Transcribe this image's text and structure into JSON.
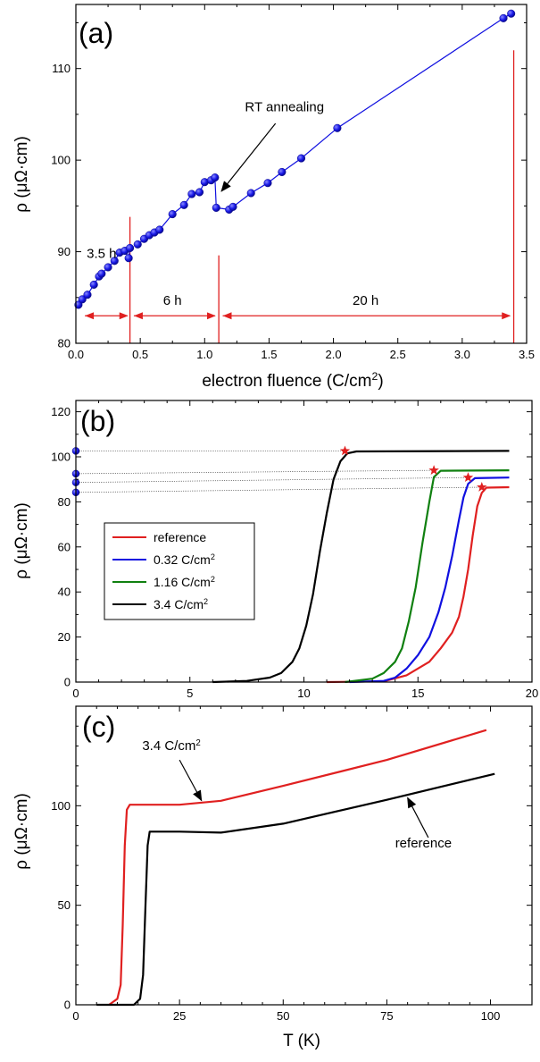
{
  "chart_data": [
    {
      "panel": "(a)",
      "type": "scatter",
      "xlabel": "electron fluence (C/cm²)",
      "ylabel": "ρ (μΩ·cm)",
      "xlim": [
        0.0,
        3.5
      ],
      "ylim": [
        80,
        117
      ],
      "xticks": [
        0.0,
        0.5,
        1.0,
        1.5,
        2.0,
        2.5,
        3.0,
        3.5
      ],
      "xtick_labels": [
        "0.0",
        "0.5",
        "1.0",
        "1.5",
        "2.0",
        "2.5",
        "3.0",
        "3.5"
      ],
      "yticks": [
        80,
        90,
        100,
        110
      ],
      "ytick_labels": [
        "80",
        "90",
        "100",
        "110"
      ],
      "grid": false,
      "color": "#1010e0",
      "annotation_color": "#e02020",
      "segments": [
        {
          "x": [
            0.02,
            0.05,
            0.09,
            0.14,
            0.18,
            0.2,
            0.25,
            0.3,
            0.34,
            0.38,
            0.41,
            0.42
          ],
          "y": [
            84.2,
            84.8,
            85.3,
            86.4,
            87.3,
            87.6,
            88.3,
            89.0,
            89.9,
            90.1,
            89.3,
            90.4
          ]
        },
        {
          "x": [
            0.48,
            0.53,
            0.57,
            0.61,
            0.65,
            0.75,
            0.84,
            0.9,
            0.96,
            1.0,
            1.05,
            1.08
          ],
          "y": [
            90.8,
            91.4,
            91.8,
            92.1,
            92.4,
            94.1,
            95.1,
            96.3,
            96.5,
            97.6,
            97.8,
            98.1
          ]
        },
        {
          "x": [
            1.08,
            1.09
          ],
          "y": [
            98.1,
            94.8
          ]
        },
        {
          "x": [
            1.09,
            1.19,
            1.22,
            1.36,
            1.49,
            1.6,
            1.75,
            2.03,
            3.32,
            3.38
          ],
          "y": [
            94.8,
            94.6,
            94.9,
            96.4,
            97.5,
            98.7,
            100.2,
            103.5,
            115.5,
            116.0
          ]
        }
      ],
      "annotations": [
        {
          "text": "RT annealing",
          "x": 1.62,
          "y": 105.8
        },
        {
          "text": "3.5 h",
          "x": 0.2,
          "y": 89.8
        },
        {
          "text": "6 h",
          "x": 0.75,
          "y": 84.7
        },
        {
          "text": "20 h",
          "x": 2.25,
          "y": 84.7
        }
      ],
      "intervals": [
        {
          "label": "3.5 h",
          "x0": 0.07,
          "x1": 0.4
        },
        {
          "label": "6 h",
          "x0": 0.45,
          "x1": 1.08
        },
        {
          "label": "20 h",
          "x0": 1.14,
          "x1": 3.37
        }
      ],
      "dividers": [
        {
          "x": 0.42,
          "y0": 80,
          "y1": 93.8
        },
        {
          "x": 1.11,
          "y0": 80,
          "y1": 89.6
        },
        {
          "x": 3.4,
          "y0": 80,
          "y1": 112
        }
      ]
    },
    {
      "panel": "(b)",
      "type": "line",
      "xlabel": "",
      "ylabel": "ρ (μΩ·cm)",
      "xlim": [
        0,
        20
      ],
      "ylim": [
        0,
        125
      ],
      "xticks": [
        0,
        5,
        10,
        15,
        20
      ],
      "xtick_labels": [
        "0",
        "5",
        "10",
        "15",
        "20"
      ],
      "yticks": [
        0,
        20,
        40,
        60,
        80,
        100,
        120
      ],
      "ytick_labels": [
        "0",
        "20",
        "40",
        "60",
        "80",
        "100",
        "120"
      ],
      "grid": false,
      "legend_position": "left-middle",
      "series": [
        {
          "name": "reference",
          "color": "#e02020",
          "x": [
            11.0,
            13.5,
            14.5,
            15.5,
            16.0,
            16.5,
            16.8,
            17.0,
            17.2,
            17.4,
            17.6,
            17.8,
            18.0,
            19.0
          ],
          "y": [
            0,
            0.3,
            3,
            9,
            15,
            22,
            29,
            38,
            50,
            65,
            78,
            84,
            86.3,
            86.5
          ]
        },
        {
          "name": "0.32 C/cm²",
          "color": "#1010e0",
          "x": [
            12.0,
            13.5,
            14.0,
            14.5,
            15.0,
            15.5,
            15.9,
            16.2,
            16.5,
            16.8,
            17.0,
            17.2,
            17.5,
            19.0
          ],
          "y": [
            0,
            0.5,
            2,
            6,
            12,
            20,
            31,
            42,
            56,
            72,
            82,
            88,
            90.5,
            90.8
          ]
        },
        {
          "name": "1.16 C/cm²",
          "color": "#108010",
          "x": [
            11.8,
            13.0,
            13.5,
            14.0,
            14.3,
            14.6,
            14.9,
            15.2,
            15.5,
            15.7,
            16.0,
            19.0
          ],
          "y": [
            0,
            1.5,
            4,
            9,
            15,
            27,
            42,
            62,
            80,
            91,
            93.8,
            94.0
          ]
        },
        {
          "name": "3.4 C/cm²",
          "color": "#000000",
          "x": [
            6.0,
            7.5,
            8.5,
            9.0,
            9.5,
            9.8,
            10.1,
            10.4,
            10.7,
            11.0,
            11.3,
            11.6,
            11.9,
            12.3,
            19.0
          ],
          "y": [
            0,
            0.5,
            2,
            4,
            9,
            15,
            25,
            39,
            58,
            75,
            90,
            98,
            101.5,
            102.4,
            102.6
          ]
        }
      ],
      "onset_markers": {
        "color": "#e02020",
        "x": [
          17.8,
          17.2,
          15.7,
          11.8
        ],
        "y": [
          86.5,
          90.8,
          94.0,
          102.6
        ]
      },
      "axis_points": {
        "x": 0,
        "y": [
          84.2,
          88.6,
          92.5,
          102.6
        ]
      },
      "guide_lines": [
        {
          "x0": 0,
          "y0": 84.2,
          "x1": 17.8,
          "y1": 86.5
        },
        {
          "x0": 0,
          "y0": 88.6,
          "x1": 17.2,
          "y1": 90.8
        },
        {
          "x0": 0,
          "y0": 92.5,
          "x1": 15.7,
          "y1": 94.0
        },
        {
          "x0": 0,
          "y0": 102.6,
          "x1": 11.8,
          "y1": 102.6
        }
      ]
    },
    {
      "panel": "(c)",
      "type": "line",
      "xlabel": "T (K)",
      "ylabel": "ρ (μΩ·cm)",
      "xlim": [
        0,
        110
      ],
      "ylim": [
        0,
        150
      ],
      "xticks": [
        0,
        25,
        50,
        75,
        100
      ],
      "xtick_labels": [
        "0",
        "25",
        "50",
        "75",
        "100"
      ],
      "yticks": [
        0,
        50,
        100
      ],
      "ytick_labels": [
        "0",
        "50",
        "100"
      ],
      "grid": false,
      "series": [
        {
          "name": "3.4 C/cm²",
          "color": "#e02020",
          "x": [
            8,
            10,
            10.8,
            11.3,
            11.8,
            12.3,
            13,
            15,
            25,
            35,
            50,
            75,
            99
          ],
          "y": [
            0,
            3,
            10,
            40,
            80,
            98,
            100.5,
            100.5,
            100.5,
            102.5,
            110,
            123,
            138
          ]
        },
        {
          "name": "reference",
          "color": "#000000",
          "x": [
            5,
            14,
            15.5,
            16.2,
            16.8,
            17.3,
            17.8,
            18.5,
            25,
            35,
            50,
            75,
            101
          ],
          "y": [
            0,
            0,
            3,
            15,
            50,
            80,
            87,
            87,
            87,
            86.5,
            91,
            103,
            116
          ]
        }
      ],
      "annotations": [
        {
          "text": "3.4 C/cm²",
          "x": 16,
          "y": 128
        },
        {
          "text": "reference",
          "x": 77,
          "y": 79
        }
      ]
    }
  ]
}
